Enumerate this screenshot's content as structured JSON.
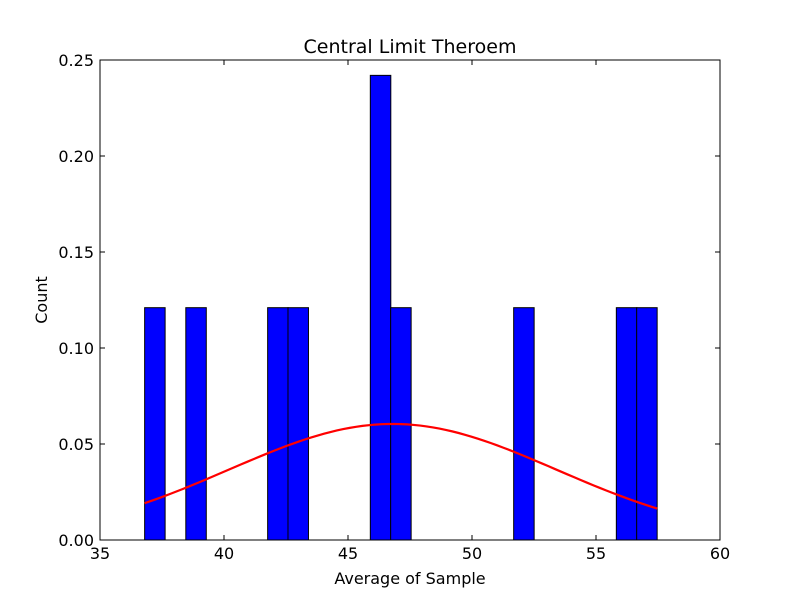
{
  "chart_data": {
    "type": "bar",
    "title": "Central Limit Theroem",
    "xlabel": "Average of Sample",
    "ylabel": "Count",
    "xlim": [
      35,
      60
    ],
    "ylim": [
      0,
      0.25
    ],
    "x_ticks": [
      "35",
      "40",
      "45",
      "50",
      "55",
      "60"
    ],
    "y_ticks": [
      "0.00",
      "0.05",
      "0.10",
      "0.15",
      "0.20",
      "0.25"
    ],
    "bin_width": 0.826,
    "bars": [
      {
        "x": 36.8,
        "value": 0.121
      },
      {
        "x": 38.46,
        "value": 0.121
      },
      {
        "x": 41.76,
        "value": 0.121
      },
      {
        "x": 42.58,
        "value": 0.121
      },
      {
        "x": 45.9,
        "value": 0.242
      },
      {
        "x": 46.72,
        "value": 0.121
      },
      {
        "x": 51.68,
        "value": 0.121
      },
      {
        "x": 55.82,
        "value": 0.121
      },
      {
        "x": 56.64,
        "value": 0.121
      }
    ],
    "curve": {
      "type": "normal_pdf",
      "mean": 46.8,
      "std": 6.6,
      "x_range": [
        36.8,
        57.47
      ],
      "color": "#ff0000"
    },
    "bar_color": "#0000ff",
    "grid": false,
    "legend": "none"
  }
}
